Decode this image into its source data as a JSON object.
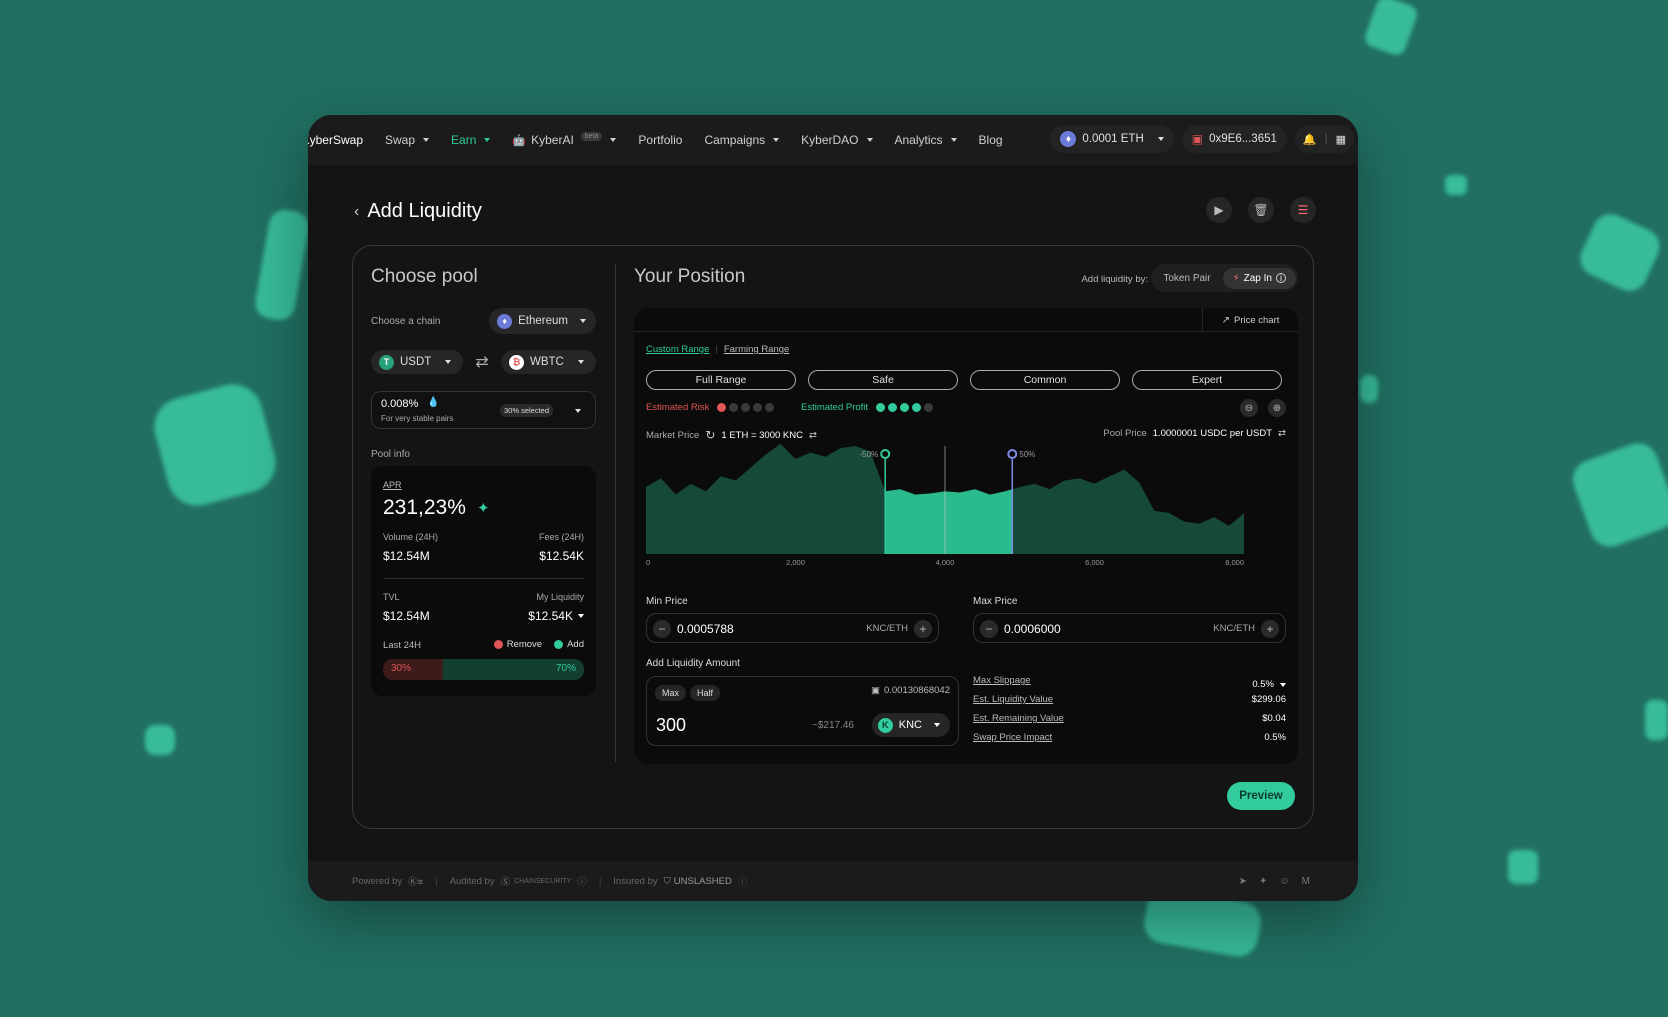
{
  "nav": {
    "logo": "KyberSwap",
    "items": [
      {
        "label": "Swap",
        "caret": true,
        "active": false
      },
      {
        "label": "Earn",
        "caret": true,
        "active": true
      },
      {
        "label": "KyberAI",
        "caret": true,
        "active": false,
        "badge": "beta"
      },
      {
        "label": "Portfolio",
        "caret": false,
        "active": false
      },
      {
        "label": "Campaigns",
        "caret": true,
        "active": false
      },
      {
        "label": "KyberDAO",
        "caret": true,
        "active": false
      },
      {
        "label": "Analytics",
        "caret": true,
        "active": false
      },
      {
        "label": "Blog",
        "caret": false,
        "active": false
      }
    ],
    "balance": "0.0001 ETH",
    "wallet": "0x9E6...3651"
  },
  "header": {
    "title": "Add Liquidity"
  },
  "choose_pool": {
    "title": "Choose pool",
    "chain_label": "Choose a chain",
    "chain": "Ethereum",
    "token_a": "USDT",
    "token_b": "WBTC",
    "fee": "0.008%",
    "fee_desc": "For very stable pairs",
    "fee_selected": "30% selected",
    "pool_info_label": "Pool info",
    "apr_label": "APR",
    "apr": "231,23%",
    "volume_label": "Volume (24H)",
    "volume": "$12.54M",
    "fees_label": "Fees (24H)",
    "fees": "$12.54K",
    "tvl_label": "TVL",
    "tvl": "$12.54M",
    "my_liq_label": "My Liquidity",
    "my_liq": "$12.54K",
    "last24_label": "Last 24H",
    "remove_label": "Remove",
    "add_label": "Add",
    "remove_pct": "30%",
    "add_pct": "70%",
    "add_fraction": 0.7,
    "remove_color": "#e05656",
    "add_color": "#31cb9e"
  },
  "position": {
    "title": "Your Position",
    "add_by_label": "Add liquidity by:",
    "opt_token_pair": "Token Pair",
    "opt_zap_in": "Zap In",
    "price_chart_label": "Price chart",
    "tab_custom": "Custom Range",
    "tab_farming": "Farming Range",
    "ranges": [
      "Full Range",
      "Safe",
      "Common",
      "Expert"
    ],
    "risk_label": "Estimated Risk",
    "risk_level": 1,
    "profit_label": "Estimated Profit",
    "profit_level": 4,
    "market_price_label": "Market Price",
    "market_price": "1 ETH = 3000 KNC",
    "pool_price_label": "Pool Price",
    "pool_price": "1.0000001 USDC per USDT",
    "marker_low": "-50%",
    "marker_high": "50%",
    "min_label": "Min Price",
    "min_value": "0.0005788",
    "max_label": "Max Price",
    "max_value": "0.0006000",
    "unit": "KNC/ETH",
    "amount_label": "Add Liquidity Amount",
    "max_btn": "Max",
    "half_btn": "Half",
    "wallet_balance": "0.00130868042",
    "amount": "300",
    "amount_usd": "~$217.46",
    "amount_token": "KNC",
    "slippage_label": "Max Slippage",
    "slippage": "0.5%",
    "liq_value_label": "Est. Liquidity Value",
    "liq_value": "$299.06",
    "remaining_label": "Est. Remaining Value",
    "remaining": "$0.04",
    "impact_label": "Swap Price Impact",
    "impact": "0.5%",
    "preview": "Preview"
  },
  "footer": {
    "powered": "Powered by",
    "audited": "Audited by",
    "auditor": "CHAINSECURITY",
    "insured": "Insured by",
    "insurer": "UNSLASHED"
  },
  "chart_data": {
    "type": "area",
    "x_ticks": [
      "0",
      "2,000",
      "4,000",
      "6,000",
      "8,000"
    ],
    "xlim": [
      0,
      8000
    ],
    "ylim": [
      0,
      100
    ],
    "x": [
      0,
      200,
      400,
      600,
      800,
      1000,
      1200,
      1400,
      1600,
      1800,
      2000,
      2200,
      2400,
      2600,
      2800,
      3000,
      3200,
      3400,
      3600,
      3800,
      4000,
      4200,
      4400,
      4600,
      4800,
      5000,
      5200,
      5400,
      5600,
      5800,
      6000,
      6200,
      6400,
      6600,
      6800,
      7000,
      7200,
      7400,
      7600,
      7800,
      8000
    ],
    "values": [
      62,
      70,
      55,
      65,
      58,
      72,
      68,
      80,
      92,
      102,
      88,
      94,
      90,
      98,
      100,
      95,
      58,
      60,
      55,
      56,
      58,
      57,
      60,
      55,
      58,
      62,
      65,
      60,
      68,
      70,
      65,
      72,
      78,
      66,
      40,
      38,
      30,
      28,
      34,
      26,
      38
    ],
    "range_low": 3200,
    "range_high": 4900,
    "current": 4000
  }
}
